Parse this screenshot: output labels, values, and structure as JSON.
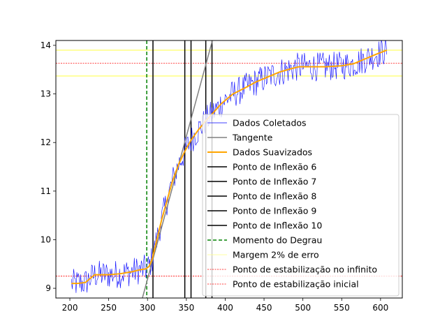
{
  "chart_data": {
    "type": "line",
    "title": "",
    "xlabel": "",
    "ylabel": "",
    "xlim": [
      182,
      628
    ],
    "ylim": [
      8.8,
      14.1
    ],
    "x_ticks": [
      200,
      250,
      300,
      350,
      400,
      450,
      500,
      550,
      600
    ],
    "y_ticks": [
      9,
      10,
      11,
      12,
      13,
      14
    ],
    "grid": false,
    "legend_position": "center-right",
    "series": [
      {
        "name": "Dados Coletados",
        "kind": "noisy-raw",
        "color": "#0000ff",
        "x_start": 202,
        "x_end": 608,
        "x_step": 1,
        "base_points": [
          [
            202,
            9.1
          ],
          [
            210,
            9.1
          ],
          [
            220,
            9.12
          ],
          [
            232,
            9.28
          ],
          [
            250,
            9.28
          ],
          [
            265,
            9.3
          ],
          [
            280,
            9.34
          ],
          [
            290,
            9.38
          ],
          [
            298,
            9.4
          ],
          [
            302,
            9.45
          ],
          [
            306,
            9.6
          ],
          [
            312,
            10.0
          ],
          [
            318,
            10.4
          ],
          [
            325,
            10.8
          ],
          [
            332,
            11.2
          ],
          [
            340,
            11.55
          ],
          [
            348,
            11.82
          ],
          [
            356,
            12.05
          ],
          [
            365,
            12.25
          ],
          [
            375,
            12.45
          ],
          [
            385,
            12.62
          ],
          [
            395,
            12.8
          ],
          [
            410,
            13.0
          ],
          [
            425,
            13.12
          ],
          [
            440,
            13.25
          ],
          [
            455,
            13.35
          ],
          [
            470,
            13.45
          ],
          [
            485,
            13.52
          ],
          [
            495,
            13.56
          ],
          [
            510,
            13.56
          ],
          [
            530,
            13.56
          ],
          [
            550,
            13.58
          ],
          [
            565,
            13.62
          ],
          [
            580,
            13.72
          ],
          [
            595,
            13.82
          ],
          [
            608,
            13.9
          ]
        ],
        "noise_amplitude": 0.3
      },
      {
        "name": "Dados Suavizados",
        "color": "#ffa500",
        "points": [
          [
            202,
            9.1
          ],
          [
            210,
            9.1
          ],
          [
            220,
            9.12
          ],
          [
            232,
            9.28
          ],
          [
            250,
            9.28
          ],
          [
            265,
            9.3
          ],
          [
            280,
            9.34
          ],
          [
            290,
            9.38
          ],
          [
            298,
            9.4
          ],
          [
            302,
            9.45
          ],
          [
            306,
            9.6
          ],
          [
            312,
            10.0
          ],
          [
            318,
            10.4
          ],
          [
            325,
            10.8
          ],
          [
            332,
            11.2
          ],
          [
            340,
            11.55
          ],
          [
            348,
            11.82
          ],
          [
            356,
            12.05
          ],
          [
            365,
            12.25
          ],
          [
            375,
            12.45
          ],
          [
            385,
            12.62
          ],
          [
            395,
            12.8
          ],
          [
            410,
            13.0
          ],
          [
            425,
            13.12
          ],
          [
            440,
            13.25
          ],
          [
            455,
            13.35
          ],
          [
            470,
            13.45
          ],
          [
            485,
            13.52
          ],
          [
            495,
            13.56
          ],
          [
            510,
            13.56
          ],
          [
            530,
            13.56
          ],
          [
            550,
            13.58
          ],
          [
            565,
            13.62
          ],
          [
            580,
            13.72
          ],
          [
            595,
            13.82
          ],
          [
            608,
            13.9
          ]
        ]
      },
      {
        "name": "Tangente",
        "color": "#808080",
        "points": [
          [
            290,
            8.6
          ],
          [
            392,
            14.6
          ]
        ]
      }
    ],
    "vertical_lines": [
      {
        "name": "Ponto de Inflexão 6",
        "x": 307,
        "color": "#000000"
      },
      {
        "name": "Ponto de Inflexão 7",
        "x": 348,
        "color": "#000000"
      },
      {
        "name": "Ponto de Inflexão 8",
        "x": 356,
        "color": "#000000"
      },
      {
        "name": "Ponto de Inflexão 9",
        "x": 375,
        "color": "#000000"
      },
      {
        "name": "Ponto de Inflexão 10",
        "x": 383,
        "color": "#000000"
      },
      {
        "name": "Momento do Degrau",
        "x": 299,
        "color": "#008000",
        "dashed": true
      }
    ],
    "horizontal_lines": [
      {
        "name": "Margem 2% de erro",
        "y": 13.9,
        "color": "#ffff80",
        "style": "solid"
      },
      {
        "name": "",
        "y": 13.37,
        "color": "#ffff80",
        "style": "solid"
      },
      {
        "name": "Ponto de estabilização no infinito",
        "y": 13.63,
        "color": "#ff0000",
        "style": "dotted"
      },
      {
        "name": "Ponto de estabilização inicial",
        "y": 9.25,
        "color": "#ff0000",
        "style": "dotted"
      }
    ],
    "legend": [
      {
        "label": "Dados Coletados",
        "color": "#0000ff",
        "style": "thin"
      },
      {
        "label": "Tangente",
        "color": "#808080",
        "style": "solid"
      },
      {
        "label": "Dados Suavizados",
        "color": "#ffa500",
        "style": "thick"
      },
      {
        "label": "Ponto de Inflexão 6",
        "color": "#000000",
        "style": "solid"
      },
      {
        "label": "Ponto de Inflexão 7",
        "color": "#000000",
        "style": "solid"
      },
      {
        "label": "Ponto de Inflexão 8",
        "color": "#000000",
        "style": "solid"
      },
      {
        "label": "Ponto de Inflexão 9",
        "color": "#000000",
        "style": "solid"
      },
      {
        "label": "Ponto de Inflexão 10",
        "color": "#000000",
        "style": "solid"
      },
      {
        "label": "Momento do Degrau",
        "color": "#008000",
        "style": "dashed"
      },
      {
        "label": "Margem 2% de erro",
        "color": "#ffff80",
        "style": "thin"
      },
      {
        "label": "Ponto de estabilização no infinito",
        "color": "#ff0000",
        "style": "dotted"
      },
      {
        "label": "Ponto de estabilização inicial",
        "color": "#ff0000",
        "style": "dotted"
      }
    ]
  }
}
